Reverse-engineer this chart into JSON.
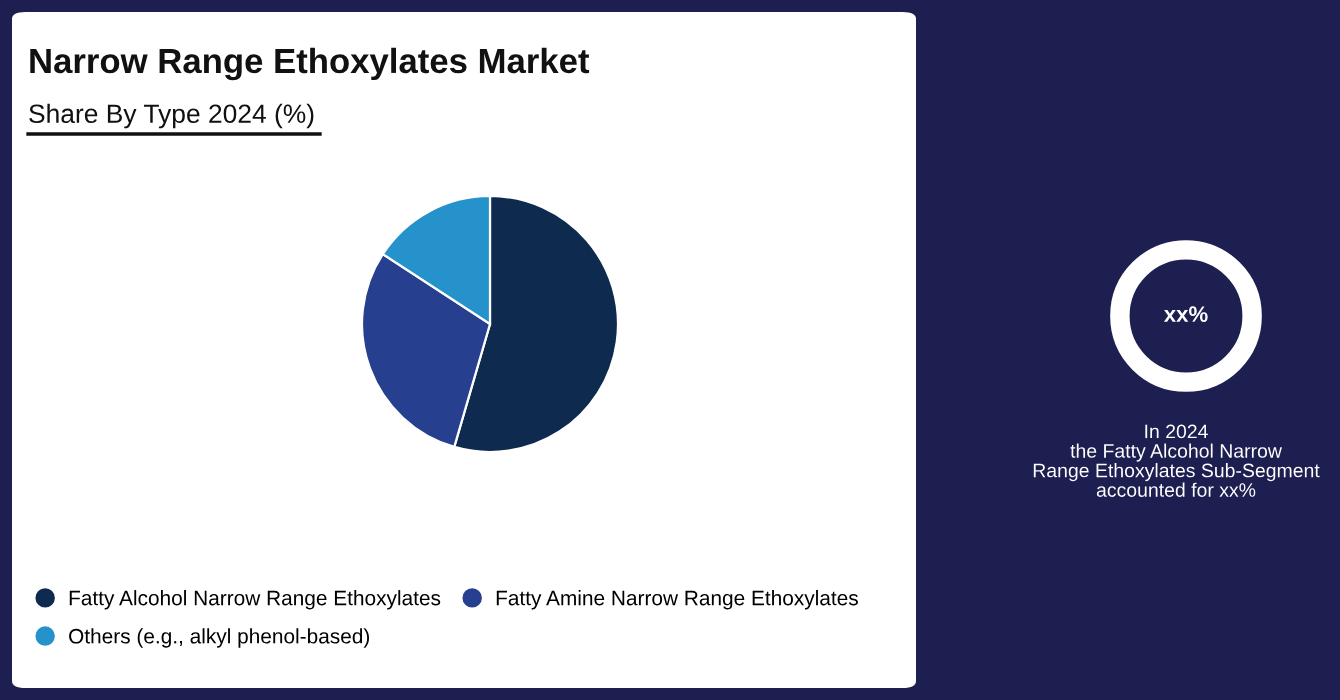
{
  "chart_data": [
    {
      "type": "pie",
      "title": "Narrow Range Ethoxylates Market",
      "subtitle": "Share By Type 2024 (%)",
      "categories": [
        "Fatty Alcohol Narrow Range Ethoxylates",
        "Fatty Amine Narrow Range Ethoxylates",
        "Others (e.g., alkyl phenol-based)"
      ],
      "values": [
        54.5,
        29.7,
        15.8
      ],
      "colors": [
        "#0e2a4f",
        "#263f8f",
        "#2592cc"
      ],
      "legend": "bottom"
    },
    {
      "type": "other",
      "annotations": [
        "xx%",
        "In 2024\nthe Fatty Alcohol Narrow\nRange Ethoxylates Sub-Segment\naccounted for xx%"
      ]
    }
  ]
}
